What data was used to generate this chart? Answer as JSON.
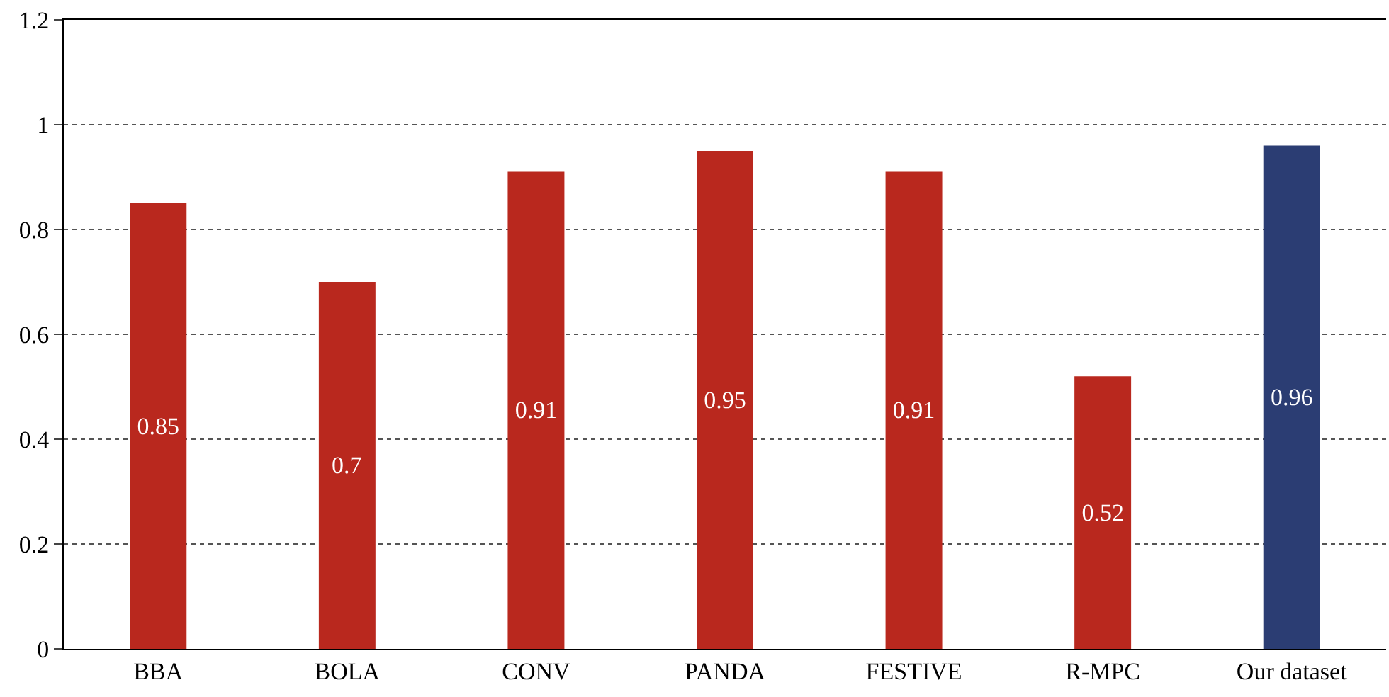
{
  "chart_data": {
    "type": "bar",
    "categories": [
      "BBA",
      "BOLA",
      "CONV",
      "PANDA",
      "FESTIVE",
      "R-MPC",
      "Our dataset"
    ],
    "values": [
      0.85,
      0.7,
      0.91,
      0.95,
      0.91,
      0.52,
      0.96
    ],
    "colors": [
      "#b9281e",
      "#b9281e",
      "#b9281e",
      "#b9281e",
      "#b9281e",
      "#b9281e",
      "#2b3d73"
    ],
    "ylim": [
      0,
      1.2
    ],
    "yticks": [
      0,
      0.2,
      0.4,
      0.6,
      0.8,
      1,
      1.2
    ],
    "grid": "y",
    "data_labels": true
  }
}
